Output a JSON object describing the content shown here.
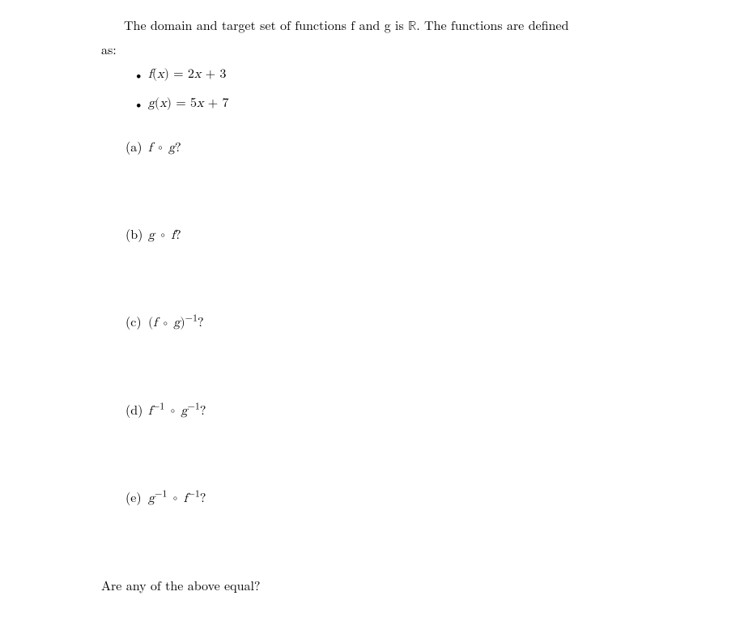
{
  "intro": {
    "line1_part1": "The domain and target set of functions f and g is ",
    "line1_real": "ℝ",
    "line1_part2": ". The functions are defined",
    "line2": "as:"
  },
  "bullets": {
    "marker": "•",
    "f_def": "f(x) = 2x + 3",
    "g_def": "g(x) = 5x + 7"
  },
  "parts": {
    "a": {
      "label": "(a)",
      "expr_pre": "f ",
      "compose": "∘",
      "expr_post": " g",
      "q": "?"
    },
    "b": {
      "label": "(b)",
      "expr_pre": "g ",
      "compose": "∘",
      "expr_post": " f",
      "q": "?"
    },
    "c": {
      "label": "(c)",
      "lparen": "(",
      "expr_pre": "f ",
      "compose": "∘",
      "expr_post": " g",
      "rparen": ")",
      "exp": "−1",
      "q": "?"
    },
    "d": {
      "label": "(d)",
      "f": "f",
      "exp1": "−1",
      "compose": "∘",
      "g": "g",
      "exp2": "−1",
      "q": "?"
    },
    "e": {
      "label": "(e)",
      "g": "g",
      "exp1": "−1",
      "compose": "∘",
      "f": "f",
      "exp2": "−1",
      "q": "?"
    }
  },
  "final": "Are any of the above equal?"
}
